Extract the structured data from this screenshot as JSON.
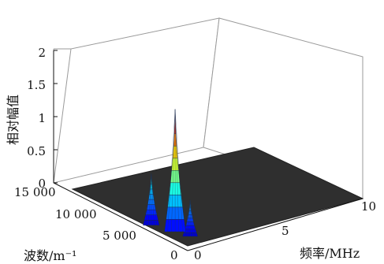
{
  "chart_data": {
    "type": "surface",
    "title": "",
    "zlabel": "相对幅值",
    "ylabel": "波数/m⁻¹",
    "xlabel": "频率/MHz",
    "zlim": [
      0,
      2
    ],
    "z_ticks": [
      "0",
      "0.5",
      "1",
      "1.5",
      "2"
    ],
    "y_ticks": [
      "0",
      "5 000",
      "10 000",
      "15 000"
    ],
    "x_ticks": [
      "0",
      "5",
      "10"
    ],
    "grid": false,
    "colormap": "jet",
    "peaks": [
      {
        "frequency_mhz": 0.6,
        "wavenumber_m": 3000,
        "amplitude": 1.85
      },
      {
        "frequency_mhz": 0.2,
        "wavenumber_m": 5200,
        "amplitude": 0.78
      },
      {
        "frequency_mhz": 0.8,
        "wavenumber_m": 1500,
        "amplitude": 0.55
      }
    ],
    "colors": {
      "floor": "#2f2f2f",
      "box": "#9a9a9a"
    }
  }
}
